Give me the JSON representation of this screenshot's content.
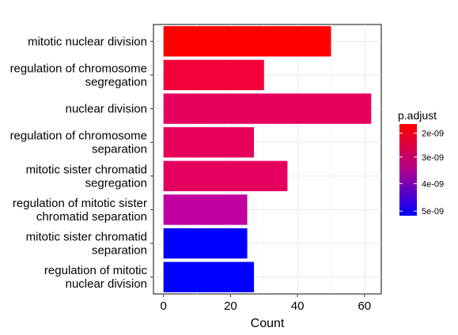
{
  "chart_data": {
    "type": "bar",
    "orientation": "horizontal",
    "xlabel": "Count",
    "xlim": [
      -3,
      65
    ],
    "xticks": [
      0,
      20,
      40,
      60
    ],
    "grid": true,
    "categories": [
      [
        "mitotic nuclear division"
      ],
      [
        "regulation of chromosome",
        "segregation"
      ],
      [
        "nuclear division"
      ],
      [
        "regulation of chromosome",
        "separation"
      ],
      [
        "mitotic sister chromatid",
        "segregation"
      ],
      [
        "regulation of mitotic sister",
        "chromatid separation"
      ],
      [
        "mitotic sister chromatid",
        "separation"
      ],
      [
        "regulation of mitotic",
        "nuclear division"
      ]
    ],
    "values": [
      50,
      30,
      62,
      27,
      37,
      25,
      25,
      27
    ],
    "colors": [
      "#ff0000",
      "#f3003a",
      "#e6005e",
      "#e6005a",
      "#e4005e",
      "#c000a0",
      "#0000ff",
      "#0000ff"
    ],
    "legend": {
      "title": "p.adjust",
      "position": "right",
      "ticks": [
        "2e-09",
        "3e-09",
        "4e-09",
        "5e-09"
      ],
      "tick_fractions": [
        0.1,
        0.36,
        0.65,
        0.95
      ],
      "color_top": "#ff0000",
      "color_bottom": "#0000ff"
    }
  }
}
